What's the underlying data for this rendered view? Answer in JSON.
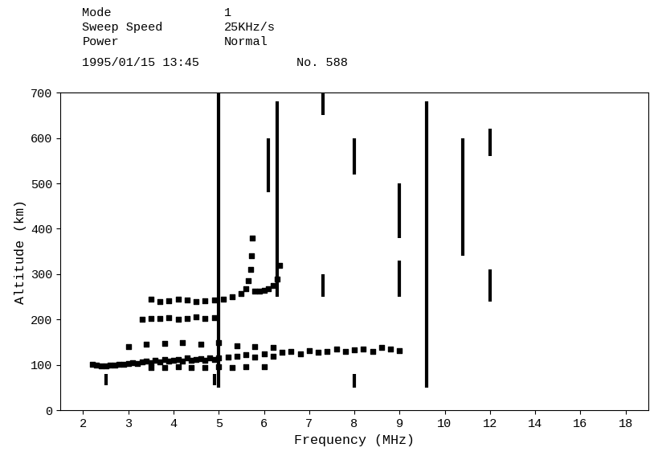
{
  "chart_data": {
    "type": "scatter",
    "annotations": [
      "Mode",
      "1",
      "Sweep Speed",
      "25KHz/s",
      "Power",
      "Normal",
      "1995/01/15 13:45",
      "No. 588"
    ],
    "xlabel": "Frequency (MHz)",
    "ylabel": "Altitude (km)",
    "xlim": [
      1.5,
      19
    ],
    "xticks": [
      2,
      3,
      4,
      5,
      6,
      7,
      8,
      9,
      10,
      12,
      14,
      16,
      18
    ],
    "ylim": [
      0,
      700
    ],
    "yticks": [
      0,
      100,
      200,
      300,
      400,
      500,
      600,
      700
    ],
    "grid": false,
    "color": "#000000",
    "marker": "s",
    "series": [
      {
        "x": [
          2.2,
          2.3,
          2.4,
          2.5,
          2.6,
          2.7,
          2.8,
          2.9,
          3.0,
          3.1,
          3.2,
          3.3,
          3.4,
          3.5,
          3.6,
          3.7,
          3.8,
          3.9,
          4.0,
          4.1,
          4.2,
          4.3,
          4.4,
          4.5,
          4.6,
          4.7,
          4.8,
          4.9,
          5.0,
          5.2,
          5.4,
          5.6,
          5.8,
          6.0,
          6.2,
          6.4,
          6.6,
          6.8,
          7.0,
          7.2,
          7.4,
          7.6,
          7.8,
          8.0,
          8.2,
          8.4,
          8.6,
          8.8,
          9.0
        ],
        "values": [
          102,
          100,
          98,
          98,
          99,
          100,
          101,
          102,
          103,
          105,
          104,
          106,
          108,
          105,
          110,
          107,
          112,
          108,
          110,
          113,
          108,
          115,
          110,
          112,
          114,
          110,
          116,
          112,
          115,
          118,
          120,
          122,
          118,
          125,
          120,
          128,
          130,
          125,
          132,
          128,
          130,
          135,
          130,
          133,
          135,
          130,
          138,
          135,
          132
        ]
      },
      {
        "x": [
          3.0,
          3.4,
          3.8,
          4.2,
          4.6,
          5.0,
          5.4,
          5.8,
          6.2
        ],
        "values": [
          140,
          145,
          148,
          150,
          145,
          150,
          142,
          140,
          138
        ]
      },
      {
        "x": [
          3.5,
          3.8,
          4.1,
          4.4,
          4.7,
          5.0,
          5.3,
          5.6,
          6.0
        ],
        "values": [
          95,
          94,
          96,
          95,
          94,
          96,
          95,
          97,
          96
        ]
      },
      {
        "x": [
          3.3,
          3.5,
          3.7,
          3.9,
          4.1,
          4.3,
          4.5,
          4.7,
          4.9
        ],
        "values": [
          200,
          202,
          203,
          205,
          200,
          203,
          206,
          202,
          205
        ]
      },
      {
        "x": [
          3.5,
          3.7,
          3.9,
          4.1,
          4.3,
          4.5,
          4.7,
          4.9,
          5.1,
          5.3,
          5.5,
          5.6,
          5.65,
          5.7,
          5.72,
          5.74
        ],
        "values": [
          245,
          240,
          242,
          245,
          243,
          240,
          242,
          244,
          245,
          250,
          258,
          268,
          285,
          310,
          340,
          380
        ]
      },
      {
        "x": [
          5.8,
          5.9,
          6.0,
          6.1,
          6.2,
          6.3,
          6.35
        ],
        "values": [
          262,
          262,
          265,
          268,
          275,
          290,
          320
        ]
      },
      {
        "type": "line",
        "x": [
          5.0,
          5.0
        ],
        "values": [
          50,
          700
        ]
      },
      {
        "type": "line",
        "x": [
          6.3,
          6.3
        ],
        "values": [
          250,
          680
        ]
      },
      {
        "type": "line",
        "x": [
          6.1,
          6.1
        ],
        "values": [
          480,
          600
        ]
      },
      {
        "type": "line",
        "x": [
          7.3,
          7.3
        ],
        "values": [
          250,
          300
        ]
      },
      {
        "type": "line",
        "x": [
          7.3,
          7.3
        ],
        "values": [
          650,
          700
        ]
      },
      {
        "type": "line",
        "x": [
          8.0,
          8.0
        ],
        "values": [
          520,
          600
        ]
      },
      {
        "type": "line",
        "x": [
          8.0,
          8.0
        ],
        "values": [
          50,
          80
        ]
      },
      {
        "type": "line",
        "x": [
          9.0,
          9.0
        ],
        "values": [
          380,
          500
        ]
      },
      {
        "type": "line",
        "x": [
          9.0,
          9.0
        ],
        "values": [
          250,
          330
        ]
      },
      {
        "type": "line",
        "x": [
          9.6,
          9.6
        ],
        "values": [
          50,
          680
        ]
      },
      {
        "type": "line",
        "x": [
          10.8,
          10.8
        ],
        "values": [
          340,
          600
        ]
      },
      {
        "type": "line",
        "x": [
          12.0,
          12.0
        ],
        "values": [
          560,
          620
        ]
      },
      {
        "type": "line",
        "x": [
          12.0,
          12.0
        ],
        "values": [
          240,
          310
        ]
      },
      {
        "type": "line",
        "x": [
          2.5,
          2.5
        ],
        "values": [
          55,
          80
        ]
      },
      {
        "type": "line",
        "x": [
          4.9,
          4.9
        ],
        "values": [
          55,
          80
        ]
      }
    ]
  }
}
